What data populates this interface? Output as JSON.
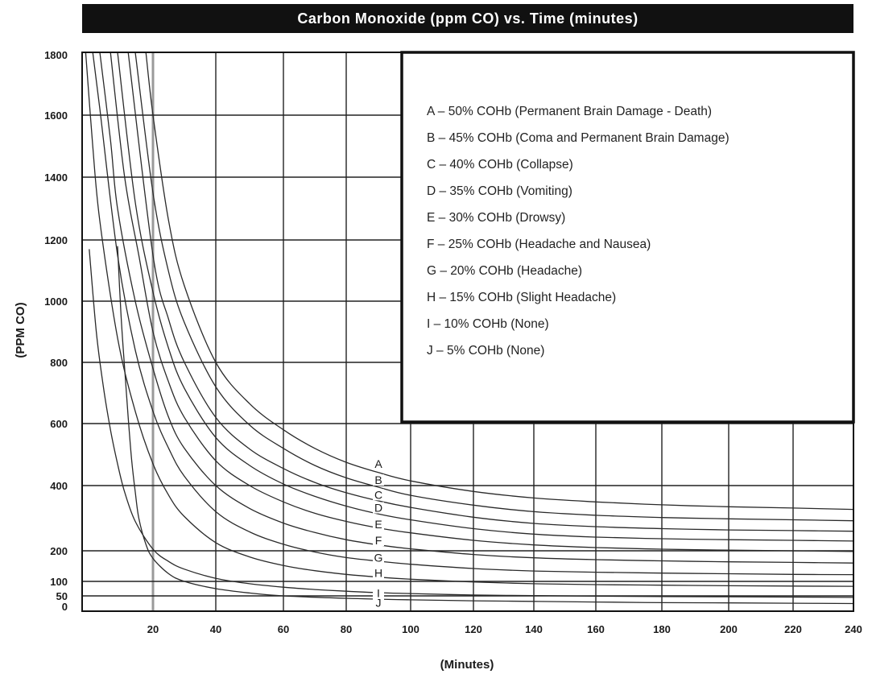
{
  "chart_data": {
    "type": "line",
    "title": "Carbon Monoxide (ppm CO) vs. Time (minutes)",
    "xlabel": "(Minutes)",
    "ylabel": "(PPM CO)",
    "xlim": [
      0,
      240
    ],
    "ylim": [
      0,
      1800
    ],
    "x_ticks": [
      20,
      40,
      60,
      80,
      100,
      120,
      140,
      160,
      180,
      200,
      220,
      240
    ],
    "y_ticks": [
      0,
      50,
      100,
      200,
      400,
      600,
      800,
      1000,
      1200,
      1400,
      1600,
      1800
    ],
    "grid": true,
    "legend_position": "top-right",
    "series": [
      {
        "name": "A",
        "values": [
          [
            18,
            1800
          ],
          [
            20,
            1600
          ],
          [
            25,
            1260
          ],
          [
            30,
            1050
          ],
          [
            40,
            800
          ],
          [
            50,
            665
          ],
          [
            60,
            580
          ],
          [
            70,
            520
          ],
          [
            80,
            475
          ],
          [
            90,
            442
          ],
          [
            100,
            415
          ],
          [
            120,
            382
          ],
          [
            140,
            362
          ],
          [
            160,
            350
          ],
          [
            180,
            341
          ],
          [
            200,
            335
          ],
          [
            220,
            331
          ],
          [
            240,
            327
          ]
        ]
      },
      {
        "name": "B",
        "values": [
          [
            15,
            1800
          ],
          [
            20,
            1350
          ],
          [
            25,
            1095
          ],
          [
            30,
            930
          ],
          [
            40,
            720
          ],
          [
            50,
            595
          ],
          [
            60,
            520
          ],
          [
            70,
            465
          ],
          [
            80,
            425
          ],
          [
            90,
            395
          ],
          [
            100,
            370
          ],
          [
            120,
            340
          ],
          [
            140,
            320
          ],
          [
            160,
            309
          ],
          [
            180,
            302
          ],
          [
            200,
            298
          ],
          [
            220,
            295
          ],
          [
            240,
            292
          ]
        ]
      },
      {
        "name": "C",
        "values": [
          [
            13,
            1800
          ],
          [
            20,
            1150
          ],
          [
            25,
            940
          ],
          [
            30,
            800
          ],
          [
            40,
            620
          ],
          [
            50,
            518
          ],
          [
            60,
            455
          ],
          [
            70,
            410
          ],
          [
            80,
            378
          ],
          [
            90,
            353
          ],
          [
            100,
            333
          ],
          [
            120,
            303
          ],
          [
            140,
            284
          ],
          [
            160,
            274
          ],
          [
            180,
            268
          ],
          [
            200,
            264
          ],
          [
            220,
            262
          ],
          [
            240,
            260
          ]
        ]
      },
      {
        "name": "D",
        "values": [
          [
            10,
            1800
          ],
          [
            15,
            1320
          ],
          [
            20,
            1030
          ],
          [
            25,
            845
          ],
          [
            30,
            715
          ],
          [
            40,
            555
          ],
          [
            50,
            465
          ],
          [
            60,
            405
          ],
          [
            70,
            367
          ],
          [
            80,
            337
          ],
          [
            90,
            313
          ],
          [
            100,
            295
          ],
          [
            120,
            268
          ],
          [
            140,
            251
          ],
          [
            160,
            242
          ],
          [
            180,
            237
          ],
          [
            200,
            234
          ],
          [
            220,
            232
          ],
          [
            240,
            230
          ]
        ]
      },
      {
        "name": "E",
        "values": [
          [
            8,
            1800
          ],
          [
            12,
            1400
          ],
          [
            16,
            1150
          ],
          [
            20,
            900
          ],
          [
            25,
            735
          ],
          [
            30,
            620
          ],
          [
            40,
            480
          ],
          [
            50,
            400
          ],
          [
            60,
            350
          ],
          [
            70,
            315
          ],
          [
            80,
            290
          ],
          [
            90,
            270
          ],
          [
            100,
            255
          ],
          [
            120,
            232
          ],
          [
            140,
            218
          ],
          [
            160,
            210
          ],
          [
            180,
            205
          ],
          [
            200,
            202
          ],
          [
            220,
            200
          ],
          [
            240,
            198
          ]
        ]
      },
      {
        "name": "F",
        "values": [
          [
            5,
            1800
          ],
          [
            8,
            1520
          ],
          [
            10,
            1300
          ],
          [
            15,
            1000
          ],
          [
            20,
            780
          ],
          [
            25,
            620
          ],
          [
            30,
            520
          ],
          [
            40,
            400
          ],
          [
            50,
            330
          ],
          [
            60,
            285
          ],
          [
            70,
            256
          ],
          [
            80,
            234
          ],
          [
            90,
            218
          ],
          [
            100,
            206
          ],
          [
            120,
            188
          ],
          [
            140,
            177
          ],
          [
            160,
            171
          ],
          [
            180,
            167
          ],
          [
            200,
            164
          ],
          [
            220,
            162
          ],
          [
            240,
            160
          ]
        ]
      },
      {
        "name": "G",
        "values": [
          [
            3,
            1800
          ],
          [
            5,
            1620
          ],
          [
            10,
            1150
          ],
          [
            15,
            840
          ],
          [
            20,
            640
          ],
          [
            25,
            520
          ],
          [
            30,
            430
          ],
          [
            40,
            320
          ],
          [
            50,
            258
          ],
          [
            60,
            220
          ],
          [
            70,
            196
          ],
          [
            80,
            178
          ],
          [
            90,
            166
          ],
          [
            100,
            156
          ],
          [
            120,
            142
          ],
          [
            140,
            134
          ],
          [
            160,
            130
          ],
          [
            180,
            127
          ],
          [
            200,
            125
          ],
          [
            220,
            123
          ],
          [
            240,
            122
          ]
        ]
      },
      {
        "name": "H",
        "values": [
          [
            1,
            1800
          ],
          [
            3,
            1500
          ],
          [
            5,
            1260
          ],
          [
            10,
            880
          ],
          [
            15,
            640
          ],
          [
            20,
            470
          ],
          [
            25,
            370
          ],
          [
            30,
            305
          ],
          [
            40,
            225
          ],
          [
            50,
            180
          ],
          [
            60,
            152
          ],
          [
            70,
            135
          ],
          [
            80,
            123
          ],
          [
            90,
            114
          ],
          [
            100,
            107
          ],
          [
            120,
            98
          ],
          [
            140,
            92
          ],
          [
            160,
            89
          ],
          [
            180,
            87
          ],
          [
            200,
            85
          ],
          [
            220,
            84
          ],
          [
            240,
            83
          ]
        ]
      },
      {
        "name": "I",
        "values": [
          [
            2,
            1170
          ],
          [
            4,
            900
          ],
          [
            6,
            720
          ],
          [
            8,
            580
          ],
          [
            10,
            470
          ],
          [
            12,
            380
          ],
          [
            15,
            290
          ],
          [
            20,
            205
          ],
          [
            25,
            165
          ],
          [
            30,
            140
          ],
          [
            40,
            110
          ],
          [
            50,
            92
          ],
          [
            60,
            80
          ],
          [
            70,
            72
          ],
          [
            80,
            66
          ],
          [
            90,
            61
          ],
          [
            100,
            58
          ],
          [
            120,
            53
          ],
          [
            140,
            51
          ],
          [
            160,
            49
          ],
          [
            180,
            48
          ],
          [
            200,
            47
          ],
          [
            220,
            46
          ],
          [
            240,
            45
          ]
        ]
      },
      {
        "name": "J",
        "values": [
          [
            10,
            1180
          ],
          [
            11,
            950
          ],
          [
            12,
            780
          ],
          [
            13,
            620
          ],
          [
            14,
            480
          ],
          [
            15,
            380
          ],
          [
            16,
            300
          ],
          [
            18,
            220
          ],
          [
            20,
            175
          ],
          [
            25,
            125
          ],
          [
            30,
            100
          ],
          [
            40,
            75
          ],
          [
            50,
            60
          ],
          [
            60,
            50
          ],
          [
            80,
            42
          ],
          [
            100,
            37
          ],
          [
            120,
            34
          ],
          [
            140,
            32
          ],
          [
            160,
            30
          ],
          [
            180,
            28
          ],
          [
            200,
            27
          ],
          [
            220,
            26
          ],
          [
            240,
            25
          ]
        ]
      }
    ],
    "legend": [
      "A – 50% COHb (Permanent Brain Damage - Death)",
      "B – 45% COHb (Coma and Permanent Brain Damage)",
      "C – 40% COHb (Collapse)",
      "D – 35% COHb (Vomiting)",
      "E – 30% COHb (Drowsy)",
      "F – 25% COHb (Headache and Nausea)",
      "G – 20% COHb (Headache)",
      "H – 15% COHb (Slight Headache)",
      "I – 10% COHb (None)",
      "J – 5% COHb (None)"
    ],
    "curve_labels": [
      "A",
      "B",
      "C",
      "D",
      "E",
      "F",
      "G",
      "H",
      "I",
      "J"
    ],
    "curve_label_values": [
      470,
      418,
      372,
      332,
      282,
      232,
      177,
      128,
      60,
      27
    ]
  }
}
